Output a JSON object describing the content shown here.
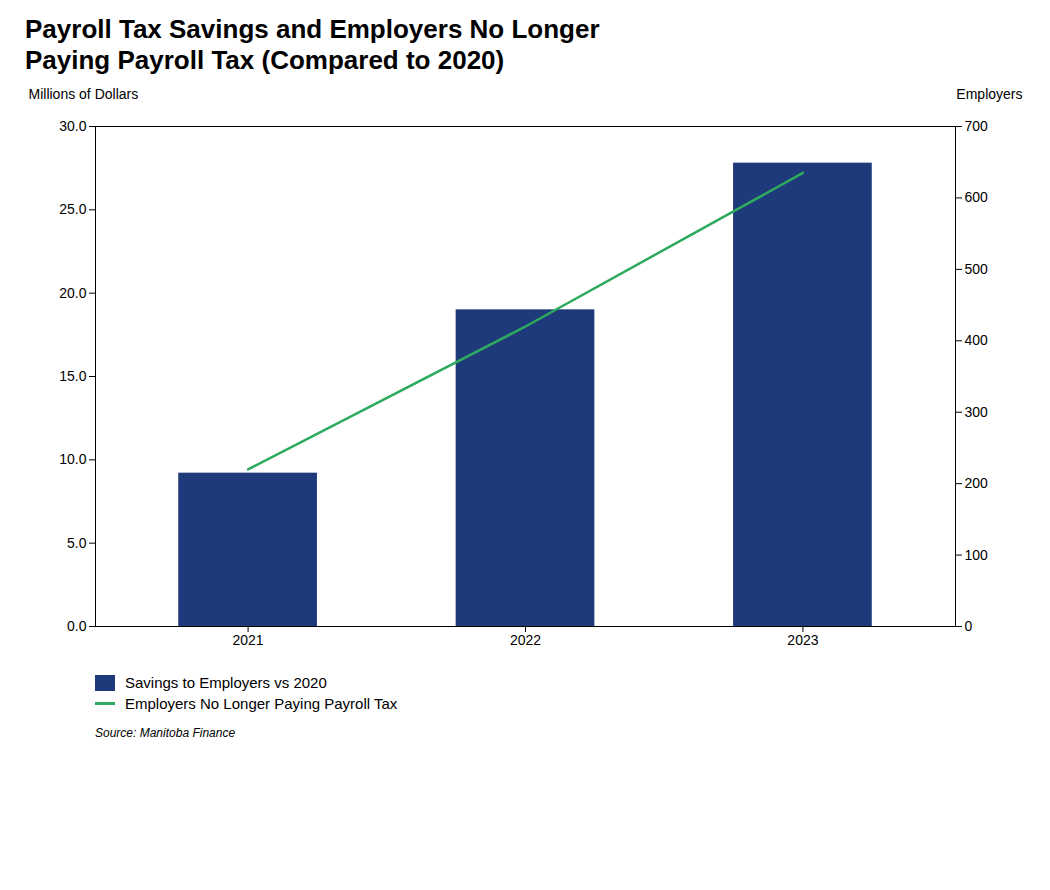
{
  "chart_data": {
    "type": "bar",
    "title": "Payroll Tax Savings and Employers No Longer\nPaying Payroll Tax (Compared to 2020)",
    "x": [
      2021,
      2022,
      2023
    ],
    "xlim": [
      2020.45,
      2023.55
    ],
    "xticks": [
      2021,
      2022,
      2023
    ],
    "ylabel": "Millions of Dollars",
    "ylim": [
      0,
      30
    ],
    "yticks": [
      {
        "value": 0,
        "label": "0.0"
      },
      {
        "value": 5,
        "label": "5.0"
      },
      {
        "value": 10,
        "label": "10.0"
      },
      {
        "value": 15,
        "label": "15.0"
      },
      {
        "value": 20,
        "label": "20.0"
      },
      {
        "value": 25,
        "label": "25.0"
      },
      {
        "value": 30,
        "label": "30.0"
      }
    ],
    "y2label": "Employers",
    "y2lim": [
      0,
      700
    ],
    "y2ticks": [
      0,
      100,
      200,
      300,
      400,
      500,
      600,
      700
    ],
    "series": [
      {
        "name": "Savings to Employers vs 2020",
        "type": "bar",
        "color": "#1F3A7A",
        "values": [
          9.2,
          19.0,
          27.8
        ]
      },
      {
        "name": "Employers No Longer Paying Payroll Tax",
        "type": "line",
        "axis": "y2",
        "color": "#2EAA5E",
        "values": [
          220,
          420,
          635
        ]
      }
    ],
    "legend": "bottom",
    "grid": false,
    "source": "Source: Manitoba Finance"
  }
}
